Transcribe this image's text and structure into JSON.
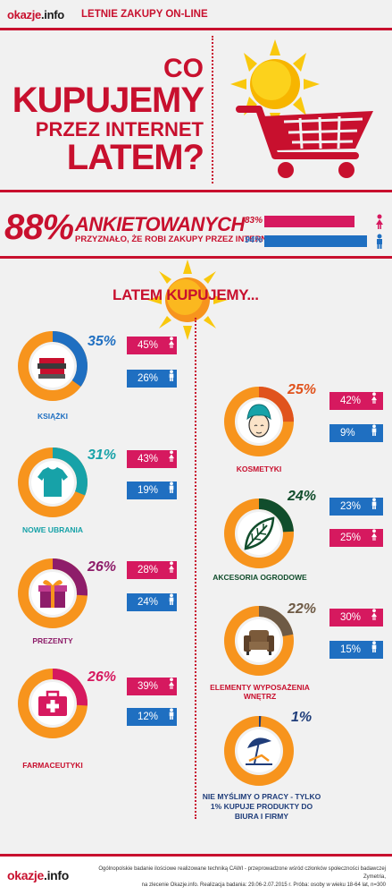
{
  "header": {
    "logo_main": "okazje",
    "logo_dot": ".",
    "logo_tld": "info",
    "subtitle": "LETNIE ZAKUPY ON-LINE"
  },
  "hero": {
    "line1": "CO",
    "line2": "KUPUJEMY",
    "line3": "PRZEZ INTERNET",
    "line4": "LATEM?",
    "icons": [
      "sun-icon",
      "shopping-cart-icon"
    ]
  },
  "survey": {
    "percent": "88%",
    "headline": "ANKIETOWANYCH",
    "subline": "PRZYZNAŁO, ŻE ROBI ZAKUPY PRZEZ INTERNET",
    "female_value": "83%",
    "female_fraction": 0.83,
    "male_value": "94%",
    "male_fraction": 0.94
  },
  "section_title": "LATEM KUPUJEMY...",
  "categories": [
    {
      "name": "KSIĄŻKI",
      "total": "35%",
      "total_fraction": 0.35,
      "female": "45%",
      "male": "26%",
      "color": "#1f6fc1",
      "icon": "books-icon"
    },
    {
      "name": "NOWE UBRANIA",
      "total": "31%",
      "total_fraction": 0.31,
      "female": "43%",
      "male": "19%",
      "color": "#17a2a8",
      "icon": "tshirt-icon"
    },
    {
      "name": "PREZENTY",
      "total": "26%",
      "total_fraction": 0.26,
      "female": "28%",
      "male": "24%",
      "color": "#8e1d6a",
      "icon": "gift-icon"
    },
    {
      "name": "FARMACEUTYKI",
      "total": "26%",
      "total_fraction": 0.26,
      "female": "39%",
      "male": "12%",
      "color": "#d6195f",
      "icon": "first-aid-kit-icon"
    },
    {
      "name": "KOSMETYKI",
      "total": "25%",
      "total_fraction": 0.25,
      "female": "42%",
      "male": "9%",
      "color": "#e0531d",
      "icon": "face-towel-icon"
    },
    {
      "name": "AKCESORIA OGRODOWE",
      "total": "24%",
      "total_fraction": 0.24,
      "female": "25%",
      "male": "23%",
      "color": "#114d2c",
      "icon": "leaf-icon"
    },
    {
      "name": "ELEMENTY WYPOSAŻENIA WNĘTRZ",
      "total": "22%",
      "total_fraction": 0.22,
      "female": "30%",
      "male": "15%",
      "color": "#6e5a45",
      "icon": "armchair-icon"
    },
    {
      "name": "NIE MYŚLIMY O PRACY - TYLKO 1% KUPUJE PRODUKTY DO BIURA I FIRMY",
      "total": "1%",
      "total_fraction": 0.01,
      "color": "#1f3d7a",
      "icon": "beach-umbrella-icon"
    }
  ],
  "footer": {
    "logo_main": "okazje",
    "logo_dot": ".",
    "logo_tld": "info",
    "line1": "Ogólnopolskie badanie ilościowe realizowane techniką CAWI - przeprowadzone wśród członków społeczności badawczej Zymetria,",
    "line2": "na zlecenie Okazje.info. Realizacja badania: 29.06-2.07.2015 r. Próba: osoby w wieku 18-64 lat, n=300"
  },
  "colors": {
    "brand_red": "#c8102e",
    "female_pink": "#d6195f",
    "male_blue": "#1f6fc1",
    "donut_orange": "#f7941d",
    "sun_yellow": "#f9c80e"
  }
}
